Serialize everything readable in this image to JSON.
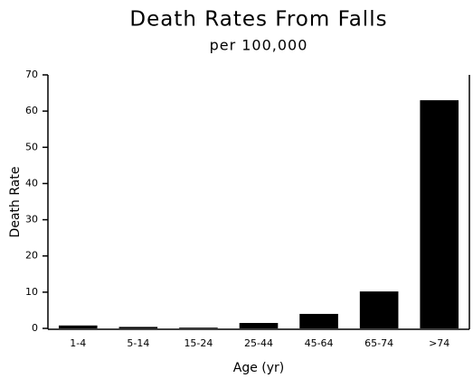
{
  "chart_data": {
    "type": "bar",
    "title": "Death Rates From Falls",
    "subtitle": "per 100,000",
    "x_label": "Age (yr)",
    "y_label": "Death Rate",
    "categories": [
      "1-4",
      "5-14",
      "15-24",
      "25-44",
      "45-64",
      "65-74",
      ">74"
    ],
    "values": [
      0.8,
      0.4,
      0.2,
      1.5,
      4,
      10.2,
      63
    ],
    "color": "#000000",
    "ylim": [
      0,
      70
    ],
    "yticks": [
      0,
      10,
      20,
      30,
      40,
      50,
      60,
      70
    ],
    "grid": false
  }
}
